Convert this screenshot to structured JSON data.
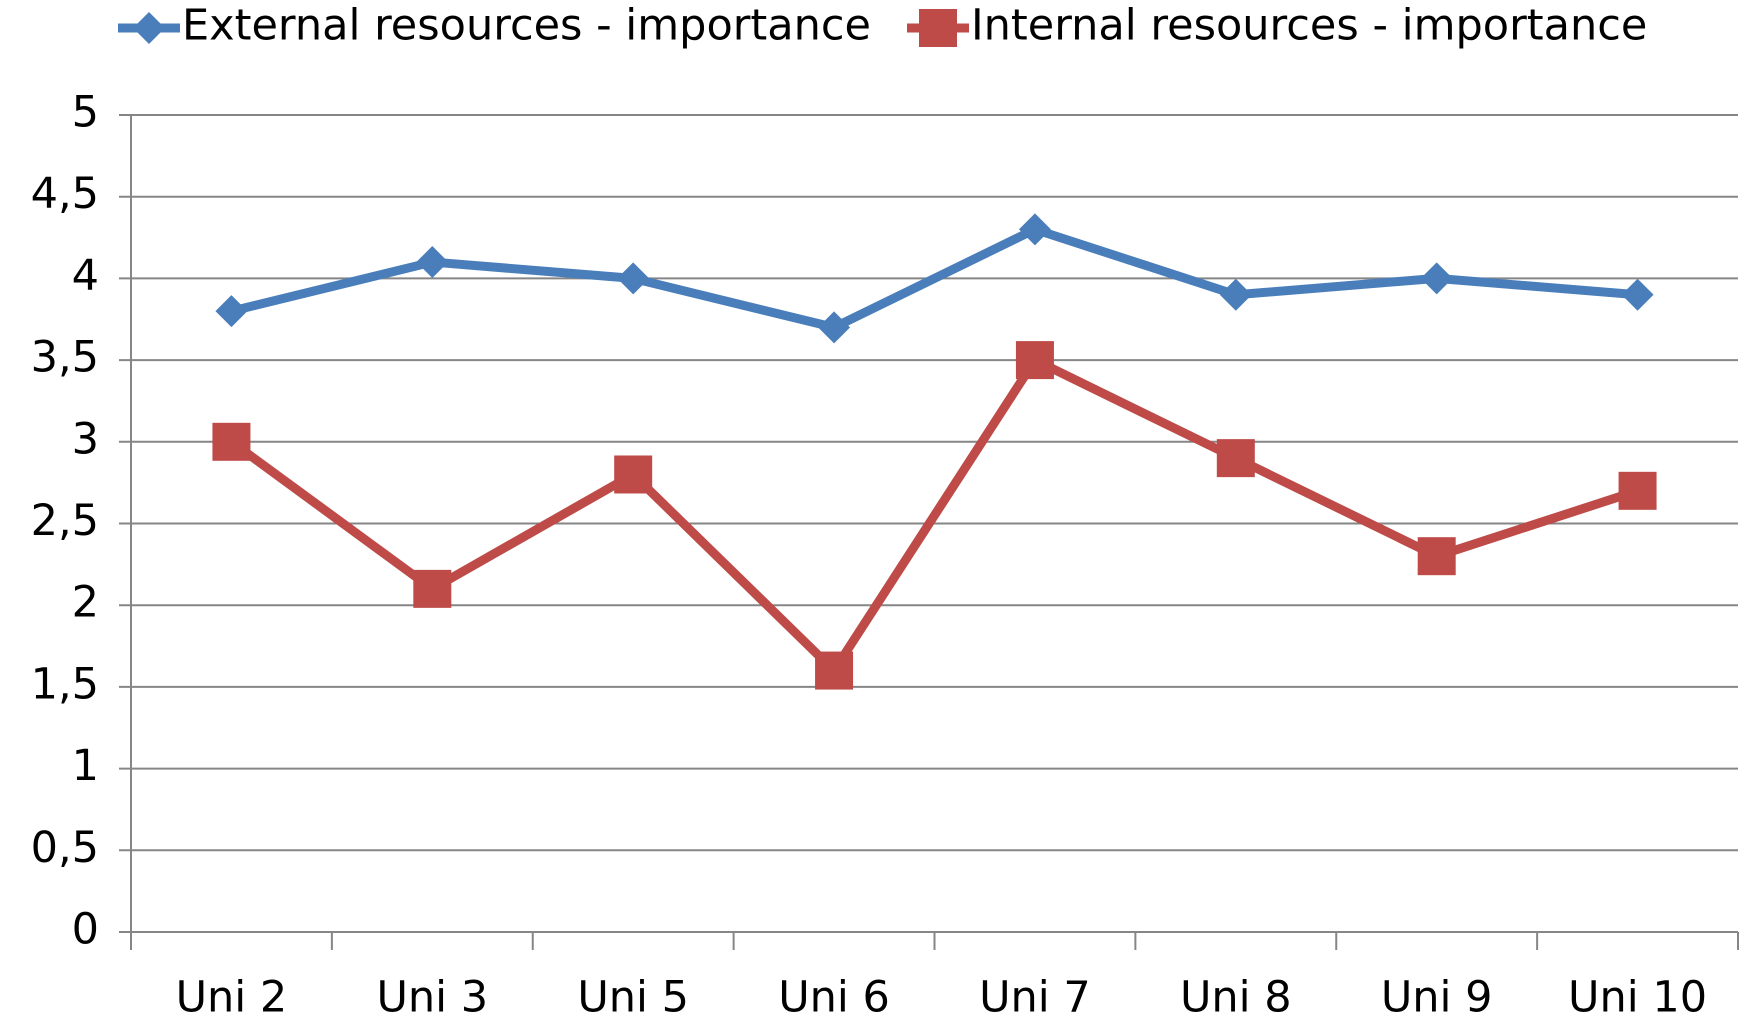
{
  "chart_data": {
    "type": "line",
    "categories": [
      "Uni 2",
      "Uni 3",
      "Uni 5",
      "Uni 6",
      "Uni 7",
      "Uni 8",
      "Uni 9",
      "Uni 10"
    ],
    "series": [
      {
        "name": "External resources - importance",
        "color": "#4a7ebb",
        "marker": "diamond",
        "values": [
          3.8,
          4.1,
          4.0,
          3.7,
          4.3,
          3.9,
          4.0,
          3.9
        ]
      },
      {
        "name": "Internal resources - importance",
        "color": "#be4b48",
        "marker": "square",
        "values": [
          3.0,
          2.1,
          2.8,
          1.6,
          3.5,
          2.9,
          2.3,
          2.7
        ]
      }
    ],
    "ylim": [
      0,
      5
    ],
    "yticks": [
      0,
      {
        "value": 0.5,
        "label": "0,5"
      },
      1,
      {
        "value": 1.5,
        "label": "1,5"
      },
      2,
      {
        "value": 2.5,
        "label": "2,5"
      },
      3,
      {
        "value": 3.5,
        "label": "3,5"
      },
      4,
      {
        "value": 4.5,
        "label": "4,5"
      },
      5
    ],
    "grid": true,
    "legend": "top"
  }
}
